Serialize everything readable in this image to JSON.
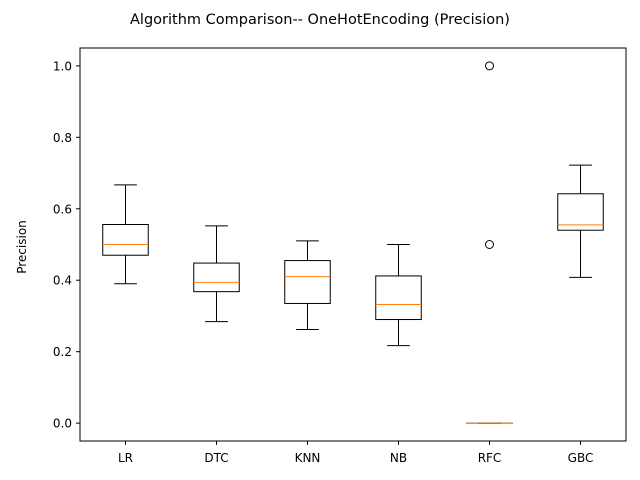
{
  "chart_data": {
    "type": "box",
    "title": "Algorithm Comparison-- OneHotEncoding (Precision)",
    "xlabel": "",
    "ylabel": "Precision",
    "ylim": [
      -0.05,
      1.05
    ],
    "yticks": [
      "0.0",
      "0.2",
      "0.4",
      "0.6",
      "0.8",
      "1.0"
    ],
    "categories": [
      "LR",
      "DTC",
      "KNN",
      "NB",
      "RFC",
      "GBC"
    ],
    "boxes": [
      {
        "label": "LR",
        "whisker_low": 0.39,
        "q1": 0.47,
        "median": 0.5,
        "q3": 0.556,
        "whisker_high": 0.667,
        "outliers": []
      },
      {
        "label": "DTC",
        "whisker_low": 0.284,
        "q1": 0.368,
        "median": 0.394,
        "q3": 0.448,
        "whisker_high": 0.552,
        "outliers": []
      },
      {
        "label": "KNN",
        "whisker_low": 0.262,
        "q1": 0.335,
        "median": 0.41,
        "q3": 0.455,
        "whisker_high": 0.51,
        "outliers": []
      },
      {
        "label": "NB",
        "whisker_low": 0.217,
        "q1": 0.29,
        "median": 0.332,
        "q3": 0.412,
        "whisker_high": 0.5,
        "outliers": []
      },
      {
        "label": "RFC",
        "whisker_low": 0.0,
        "q1": 0.0,
        "median": 0.0,
        "q3": 0.0,
        "whisker_high": 0.0,
        "outliers": [
          0.5,
          1.0
        ]
      },
      {
        "label": "GBC",
        "whisker_low": 0.408,
        "q1": 0.54,
        "median": 0.555,
        "q3": 0.642,
        "whisker_high": 0.722,
        "outliers": []
      }
    ],
    "colors": {
      "box": "#000000",
      "median": "#ff7f0e",
      "background": "#ffffff"
    },
    "grid": false,
    "legend": "none"
  }
}
